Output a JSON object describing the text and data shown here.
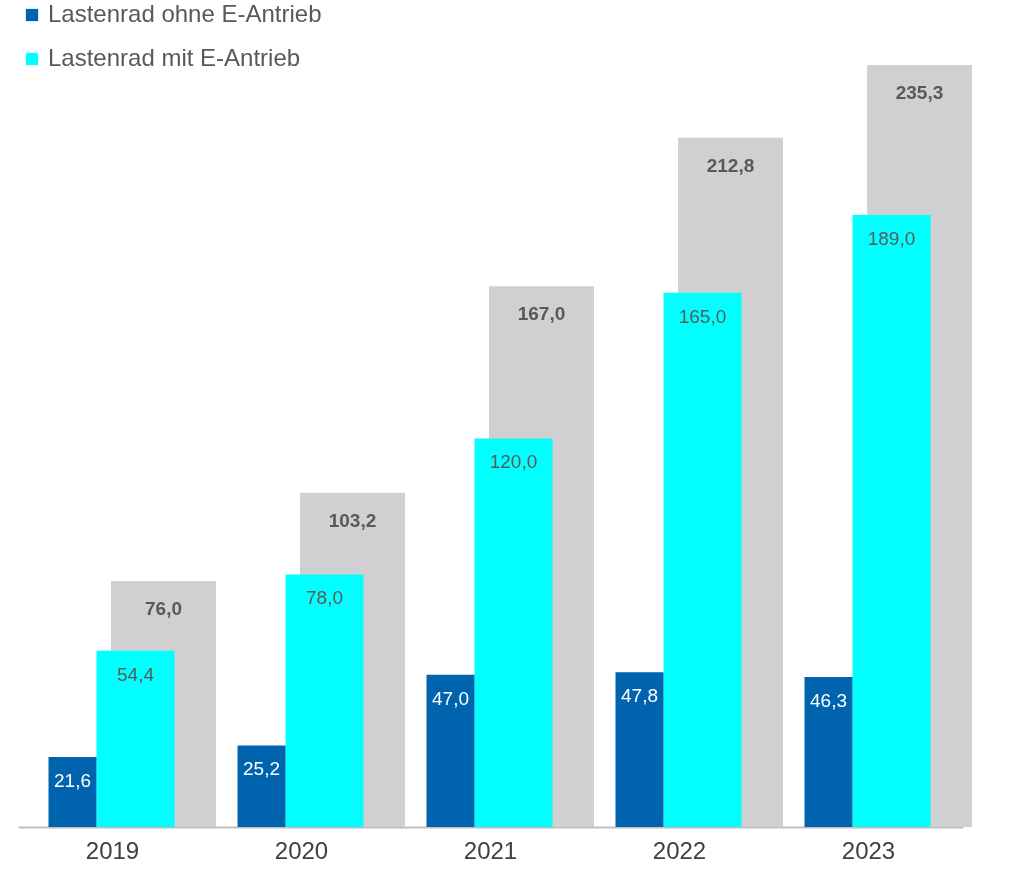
{
  "chart_data": {
    "type": "bar",
    "categories": [
      "2019",
      "2020",
      "2021",
      "2022",
      "2023"
    ],
    "series": [
      {
        "name": "Lastenrad ohne E-Antrieb",
        "color": "#0063ad",
        "values": [
          21.6,
          25.2,
          47.0,
          47.8,
          46.3
        ],
        "value_labels": [
          "21,6",
          "25,2",
          "47,0",
          "47,8",
          "46,3"
        ]
      },
      {
        "name": "Lastenrad mit E-Antrieb",
        "color": "#00ffff",
        "values": [
          54.4,
          78.0,
          120.0,
          165.0,
          189.0
        ],
        "value_labels": [
          "54,4",
          "78,0",
          "120,0",
          "165,0",
          "189,0"
        ]
      },
      {
        "color": "#d0cfd1",
        "values": [
          76.0,
          103.2,
          167.0,
          212.8,
          235.3
        ],
        "value_labels": [
          "76,0",
          "103,2",
          "167,0",
          "212,8",
          "235,3"
        ]
      }
    ],
    "legend": "top left",
    "grid": false,
    "tick_labels": "x"
  }
}
